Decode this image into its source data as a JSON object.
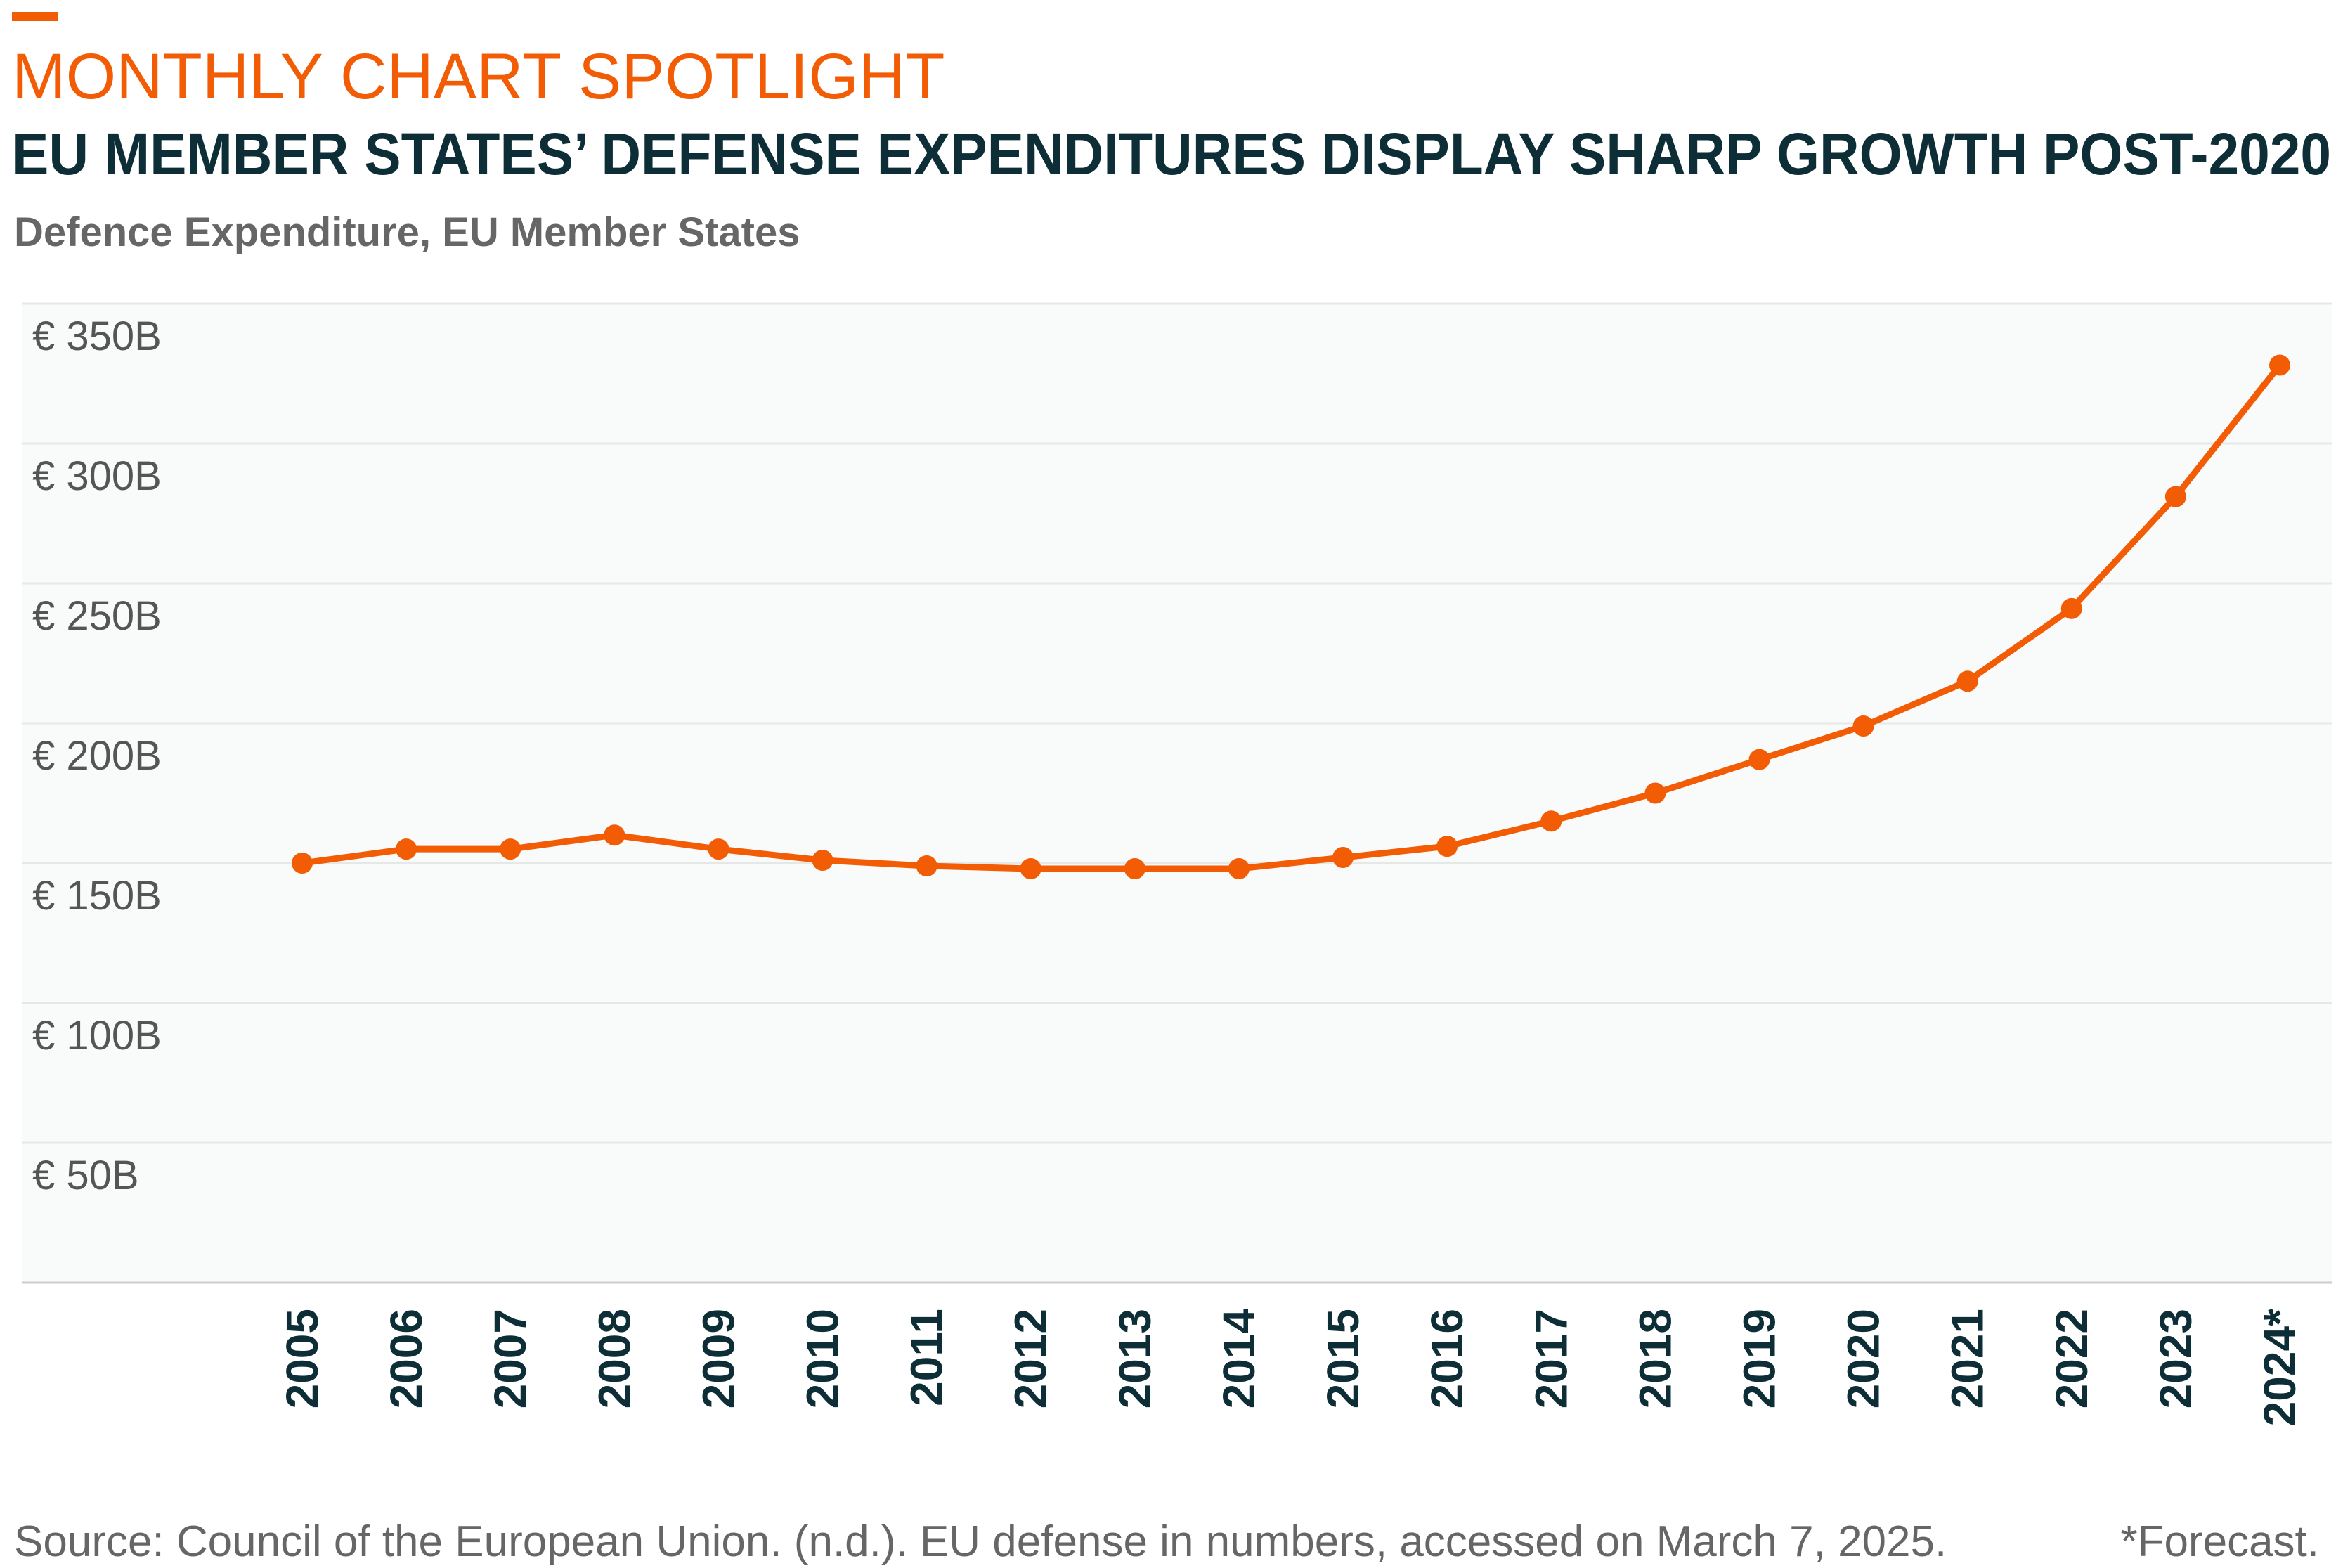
{
  "chart_data": {
    "type": "line",
    "kicker": "MONTHLY CHART SPOTLIGHT",
    "title": "EU MEMBER STATES’ DEFENSE EXPENDITURES DISPLAY SHARP GROWTH POST-2020",
    "subtitle": "Defence Expenditure, EU Member States",
    "source": "Source: Council of the European Union. (n.d.). EU defense in numbers, accessed on March 7, 2025.",
    "note": "*Forecast.",
    "categories": [
      "2005",
      "2006",
      "2007",
      "2008",
      "2009",
      "2010",
      "2011",
      "2012",
      "2013",
      "2014",
      "2015",
      "2016",
      "2017",
      "2018",
      "2019",
      "2020",
      "2021",
      "2022",
      "2023",
      "2024*"
    ],
    "series": [
      {
        "name": "Defence Expenditure",
        "color": "#f25c05",
        "values": [
          150,
          155,
          155,
          160,
          155,
          151,
          149,
          148,
          148,
          148,
          152,
          156,
          165,
          175,
          187,
          199,
          215,
          241,
          281,
          328
        ]
      }
    ],
    "ylim": [
      0,
      350
    ],
    "yticks": [
      {
        "value": 50,
        "label": "€ 50B"
      },
      {
        "value": 100,
        "label": "€ 100B"
      },
      {
        "value": 150,
        "label": "€ 150B"
      },
      {
        "value": 200,
        "label": "€ 200B"
      },
      {
        "value": 250,
        "label": "€ 250B"
      },
      {
        "value": 300,
        "label": "€ 300B"
      },
      {
        "value": 350,
        "label": "€ 350B"
      }
    ],
    "grid": true
  }
}
